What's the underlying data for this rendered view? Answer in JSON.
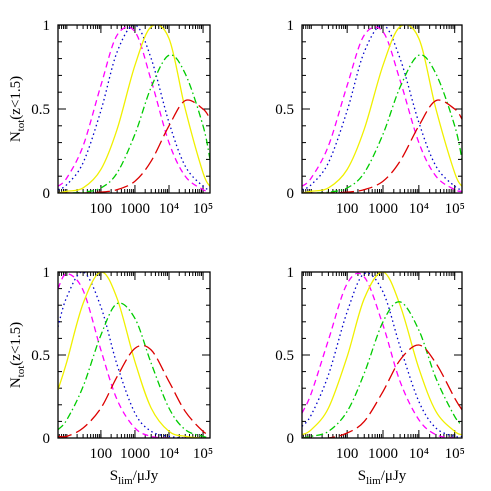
{
  "chart_data": [
    {
      "type": "line",
      "x": [
        5.5,
        10,
        30,
        100,
        300,
        1000,
        3000,
        10000,
        30000,
        100000,
        160000
      ],
      "xlim": [
        5.5,
        160000
      ],
      "log_x": true,
      "xticks": [
        100,
        1000,
        {
          "value": 10000,
          "label": "10⁴"
        },
        {
          "value": 100000,
          "label": "10⁵"
        }
      ],
      "ylim": [
        0,
        1
      ],
      "yticks": [
        0,
        0.5,
        1
      ],
      "ylabel": [
        "N",
        "tot",
        "(z<1.5)"
      ],
      "series": [
        {
          "color": "#ff00ff",
          "dash": "dashed",
          "values": [
            0.04,
            0.09,
            0.28,
            0.64,
            0.94,
            0.96,
            0.67,
            0.3,
            0.1,
            0.02,
            0.01
          ]
        },
        {
          "color": "#0000cc",
          "dash": "dotted",
          "values": [
            0.02,
            0.05,
            0.18,
            0.49,
            0.84,
            1.0,
            0.8,
            0.42,
            0.16,
            0.04,
            0.02
          ]
        },
        {
          "color": "#f0f000",
          "dash": "solid",
          "values": [
            0,
            0.01,
            0.03,
            0.14,
            0.38,
            0.76,
            0.99,
            0.92,
            0.5,
            0.12,
            0.04
          ]
        },
        {
          "color": "#00cc00",
          "dash": "dashdot",
          "values": [
            0,
            0,
            0.005,
            0.03,
            0.12,
            0.35,
            0.63,
            0.82,
            0.71,
            0.4,
            0.2
          ]
        },
        {
          "color": "#dd0000",
          "dash": "longdash",
          "values": [
            0,
            0,
            0,
            0.005,
            0.02,
            0.07,
            0.19,
            0.4,
            0.55,
            0.5,
            0.44
          ]
        }
      ]
    },
    {
      "type": "line",
      "x": [
        5.5,
        10,
        30,
        100,
        300,
        1000,
        3000,
        10000,
        30000,
        100000,
        160000
      ],
      "xlim": [
        5.5,
        160000
      ],
      "log_x": true,
      "xticks": [
        100,
        1000,
        {
          "value": 10000,
          "label": "10⁴"
        },
        {
          "value": 100000,
          "label": "10⁵"
        }
      ],
      "ylim": [
        0,
        1
      ],
      "yticks": [
        0,
        0.5,
        1
      ],
      "series": [
        {
          "color": "#ff00ff",
          "dash": "dashed",
          "values": [
            0.04,
            0.09,
            0.28,
            0.64,
            0.94,
            0.96,
            0.67,
            0.3,
            0.1,
            0.02,
            0.01
          ]
        },
        {
          "color": "#0000cc",
          "dash": "dotted",
          "values": [
            0.02,
            0.05,
            0.18,
            0.49,
            0.84,
            1.0,
            0.8,
            0.42,
            0.16,
            0.04,
            0.02
          ]
        },
        {
          "color": "#f0f000",
          "dash": "solid",
          "values": [
            0,
            0.01,
            0.03,
            0.14,
            0.38,
            0.76,
            0.99,
            0.92,
            0.5,
            0.12,
            0.04
          ]
        },
        {
          "color": "#00cc00",
          "dash": "dashdot",
          "values": [
            0,
            0,
            0.005,
            0.03,
            0.12,
            0.35,
            0.63,
            0.82,
            0.71,
            0.4,
            0.2
          ]
        },
        {
          "color": "#dd0000",
          "dash": "longdash",
          "values": [
            0,
            0,
            0,
            0.005,
            0.02,
            0.07,
            0.19,
            0.4,
            0.55,
            0.5,
            0.44
          ]
        }
      ]
    },
    {
      "type": "line",
      "x": [
        5.5,
        10,
        30,
        100,
        300,
        1000,
        3000,
        10000,
        30000,
        100000,
        160000
      ],
      "xlim": [
        5.5,
        160000
      ],
      "log_x": true,
      "xticks": [
        100,
        1000,
        {
          "value": 10000,
          "label": "10⁴"
        },
        {
          "value": 100000,
          "label": "10⁵"
        }
      ],
      "ylim": [
        0,
        1
      ],
      "yticks": [
        0,
        0.5,
        1
      ],
      "ylabel": [
        "N",
        "tot",
        "(z<1.5)"
      ],
      "xlabel": [
        "S",
        "lim",
        "/μJy"
      ],
      "series": [
        {
          "color": "#ff00ff",
          "dash": "dashed",
          "values": [
            0.9,
            0.99,
            0.89,
            0.53,
            0.23,
            0.06,
            0.01,
            0,
            0,
            0,
            0
          ]
        },
        {
          "color": "#0000cc",
          "dash": "dotted",
          "values": [
            0.67,
            0.85,
            1.0,
            0.79,
            0.44,
            0.15,
            0.04,
            0.01,
            0,
            0,
            0
          ]
        },
        {
          "color": "#f0f000",
          "dash": "solid",
          "values": [
            0.29,
            0.46,
            0.81,
            1.0,
            0.84,
            0.46,
            0.18,
            0.04,
            0.01,
            0,
            0
          ]
        },
        {
          "color": "#00cc00",
          "dash": "dashdot",
          "values": [
            0.05,
            0.11,
            0.31,
            0.62,
            0.81,
            0.72,
            0.45,
            0.18,
            0.05,
            0.01,
            0
          ]
        },
        {
          "color": "#dd0000",
          "dash": "longdash",
          "values": [
            0.01,
            0.01,
            0.06,
            0.18,
            0.37,
            0.54,
            0.53,
            0.34,
            0.16,
            0.04,
            0.02
          ]
        }
      ]
    },
    {
      "type": "line",
      "x": [
        5.5,
        10,
        30,
        100,
        300,
        1000,
        3000,
        10000,
        30000,
        100000,
        160000
      ],
      "xlim": [
        5.5,
        160000
      ],
      "log_x": true,
      "xticks": [
        100,
        1000,
        {
          "value": 10000,
          "label": "10⁴"
        },
        {
          "value": 100000,
          "label": "10⁵"
        }
      ],
      "ylim": [
        0,
        1
      ],
      "yticks": [
        0,
        0.5,
        1
      ],
      "xlabel": [
        "S",
        "lim",
        "/μJy"
      ],
      "series": [
        {
          "color": "#ff00ff",
          "dash": "dashed",
          "values": [
            0.15,
            0.27,
            0.59,
            0.93,
            0.97,
            0.68,
            0.34,
            0.11,
            0.02,
            0,
            0
          ]
        },
        {
          "color": "#0000cc",
          "dash": "dotted",
          "values": [
            0.07,
            0.14,
            0.38,
            0.76,
            0.99,
            0.88,
            0.55,
            0.22,
            0.06,
            0.01,
            0.01
          ]
        },
        {
          "color": "#f0f000",
          "dash": "solid",
          "values": [
            0.02,
            0.05,
            0.18,
            0.49,
            0.84,
            1.0,
            0.8,
            0.42,
            0.16,
            0.04,
            0.02
          ]
        },
        {
          "color": "#00cc00",
          "dash": "dashdot",
          "values": [
            0,
            0.01,
            0.04,
            0.16,
            0.39,
            0.7,
            0.82,
            0.65,
            0.36,
            0.13,
            0.08
          ]
        },
        {
          "color": "#dd0000",
          "dash": "longdash",
          "values": [
            0,
            0,
            0,
            0.03,
            0.1,
            0.28,
            0.47,
            0.56,
            0.45,
            0.24,
            0.17
          ]
        }
      ]
    }
  ]
}
